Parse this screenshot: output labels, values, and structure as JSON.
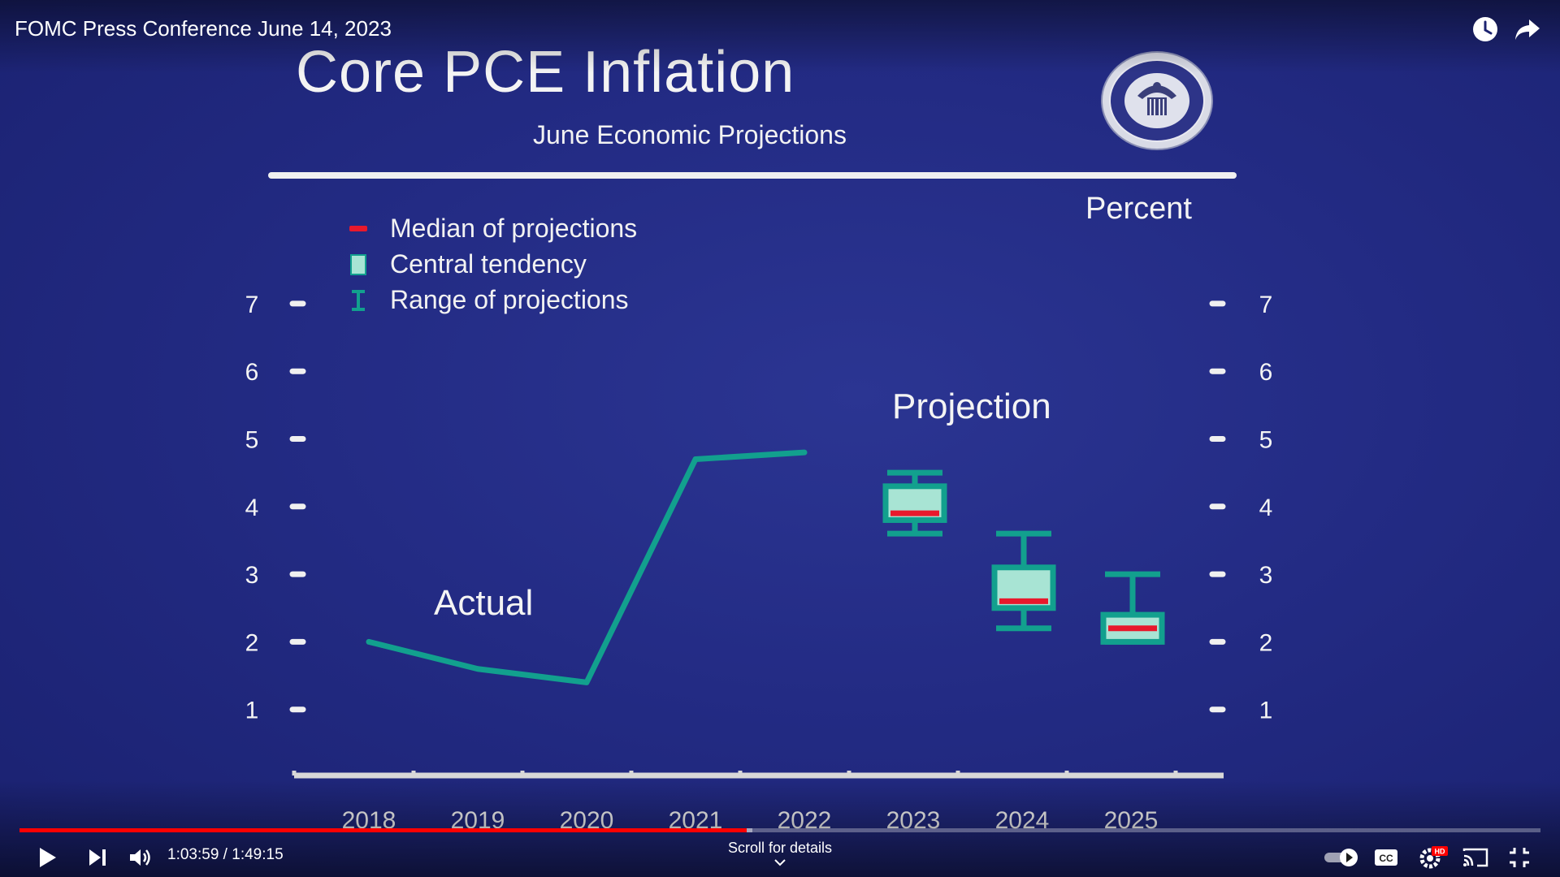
{
  "video": {
    "title": "FOMC Press Conference June 14, 2023",
    "time_current": "1:03:59",
    "time_total": "1:49:15",
    "time_separator": " / ",
    "scroll_hint": "Scroll for details",
    "progress_played_fraction": 0.478,
    "progress_loaded_fraction": 0.482,
    "hd_badge": "HD"
  },
  "icons": {
    "watch_later": "clock-icon",
    "share": "share-arrow-icon",
    "play": "play-icon",
    "next": "next-icon",
    "volume": "volume-icon",
    "autoplay": "autoplay-toggle-icon",
    "captions": "cc-icon",
    "settings": "gear-icon",
    "cast": "cast-icon",
    "fullscreen_exit": "exit-fullscreen-icon"
  },
  "slide": {
    "title": "Core PCE Inflation",
    "subtitle": "June Economic Projections",
    "percent_label": "Percent",
    "legend": [
      {
        "label": "Median of projections",
        "kind": "median"
      },
      {
        "label": "Central tendency",
        "kind": "central"
      },
      {
        "label": "Range of projections",
        "kind": "range"
      }
    ],
    "actual_label": "Actual",
    "projection_label": "Projection"
  },
  "colors": {
    "background": "#232b84",
    "line": "#12a08e",
    "central_fill": "#a8e4d4",
    "median": "#e8192c",
    "text": "#f4f4f4"
  },
  "chart_data": {
    "type": "line",
    "title": "Core PCE Inflation",
    "subtitle": "June Economic Projections",
    "ylabel": "Percent",
    "ylim": [
      0,
      7
    ],
    "yticks": [
      1,
      2,
      3,
      4,
      5,
      6,
      7
    ],
    "categories": [
      "2018",
      "2019",
      "2020",
      "2021",
      "2022",
      "2023",
      "2024",
      "2025"
    ],
    "actual": {
      "x": [
        "2018",
        "2019",
        "2020",
        "2021",
        "2022"
      ],
      "points": [
        {
          "x": 2018.0,
          "y": 2.0
        },
        {
          "x": 2019.0,
          "y": 1.6
        },
        {
          "x": 2020.0,
          "y": 1.4
        },
        {
          "x": 2021.0,
          "y": 4.7
        },
        {
          "x": 2022.0,
          "y": 4.8
        }
      ]
    },
    "projections": [
      {
        "year": "2023",
        "median": 3.9,
        "central_low": 3.8,
        "central_high": 4.3,
        "range_low": 3.6,
        "range_high": 4.5
      },
      {
        "year": "2024",
        "median": 2.6,
        "central_low": 2.5,
        "central_high": 3.1,
        "range_low": 2.2,
        "range_high": 3.6
      },
      {
        "year": "2025",
        "median": 2.2,
        "central_low": 2.0,
        "central_high": 2.4,
        "range_low": 2.0,
        "range_high": 3.0
      }
    ],
    "legend_position": "top-left",
    "grid": false
  }
}
